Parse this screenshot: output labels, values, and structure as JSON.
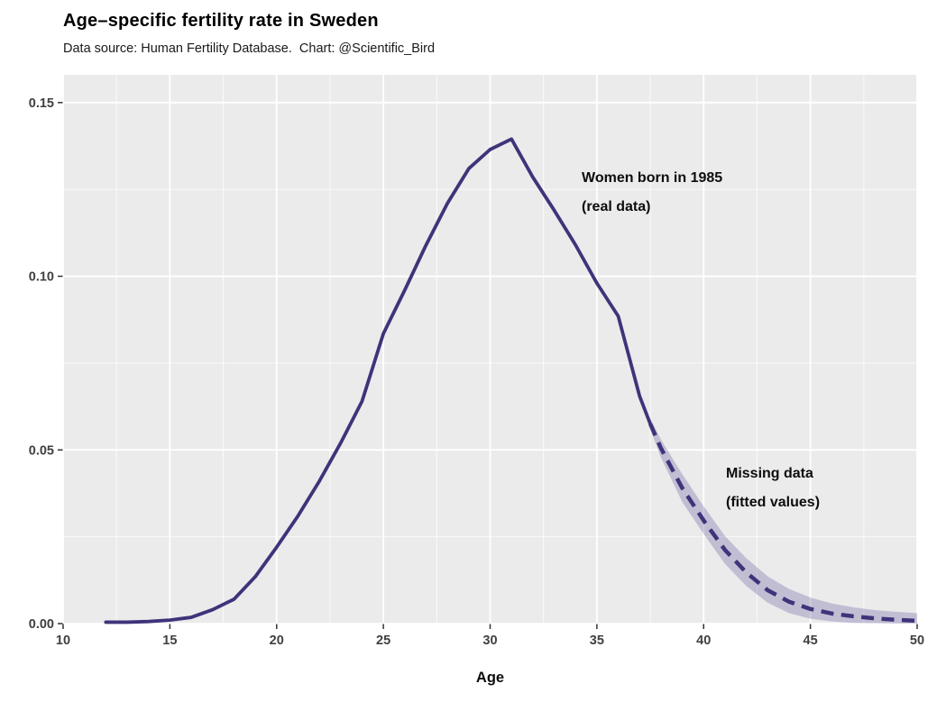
{
  "header": {
    "title": "Age–specific fertility rate in Sweden",
    "subtitle": "Data source: Human Fertility Database.  Chart: @Scientific_Bird"
  },
  "annotations": {
    "real": {
      "line1": "Women born in 1985",
      "line2": "(real data)"
    },
    "fitted": {
      "line1": "Missing data",
      "line2": "(fitted values)"
    }
  },
  "chart_data": {
    "type": "line",
    "title": "Age–specific fertility rate in Sweden",
    "subtitle": "Data source: Human Fertility Database.  Chart: @Scientific_Bird",
    "xlabel": "Age",
    "ylabel": "",
    "xlim": [
      10,
      50
    ],
    "ylim": [
      0,
      0.158
    ],
    "grid": true,
    "legend_position": "none",
    "x_major_ticks": [
      10,
      15,
      20,
      25,
      30,
      35,
      40,
      45,
      50
    ],
    "x_minor_ticks": [
      12.5,
      17.5,
      22.5,
      27.5,
      32.5,
      37.5,
      42.5,
      47.5
    ],
    "y_major_ticks": [
      0,
      0.05,
      0.1,
      0.15
    ],
    "y_minor_ticks": [
      0.025,
      0.075,
      0.125
    ],
    "y_tick_labels": [
      "0.00",
      "0.05",
      "0.10",
      "0.15"
    ],
    "colors": {
      "line": "#3d347a",
      "ribbon": "rgba(95,85,155,0.30)",
      "panel_bg": "#ebebeb",
      "grid_major": "#ffffff",
      "grid_minor": "#ffffff",
      "tick_text": "#404040",
      "tick_mark": "#333333"
    },
    "series": [
      {
        "name": "Women born in 1985 (real data)",
        "style": "solid",
        "x": [
          12,
          13,
          14,
          15,
          16,
          17,
          18,
          19,
          20,
          21,
          22,
          23,
          24,
          25,
          26,
          27,
          28,
          29,
          30,
          31,
          32,
          33,
          34,
          35,
          36,
          37,
          37.5
        ],
        "y": [
          0.0004,
          0.0004,
          0.0006,
          0.001,
          0.0018,
          0.004,
          0.007,
          0.0135,
          0.022,
          0.031,
          0.041,
          0.052,
          0.064,
          0.0835,
          0.096,
          0.109,
          0.121,
          0.131,
          0.1365,
          0.1395,
          0.1285,
          0.119,
          0.109,
          0.098,
          0.0885,
          0.0655,
          0.0575
        ]
      },
      {
        "name": "Missing data (fitted values)",
        "style": "dashed",
        "x": [
          37.5,
          38,
          39,
          40,
          41,
          42,
          43,
          44,
          45,
          46,
          47,
          48,
          49,
          50
        ],
        "y": [
          0.0575,
          0.0505,
          0.039,
          0.0297,
          0.0212,
          0.0147,
          0.0096,
          0.0063,
          0.0042,
          0.0029,
          0.0021,
          0.0015,
          0.0011,
          0.0008
        ]
      }
    ],
    "band": {
      "name": "fitted confidence band",
      "x": [
        37.5,
        38,
        39,
        40,
        41,
        42,
        43,
        44,
        45,
        46,
        47,
        48,
        49,
        50
      ],
      "upper": [
        0.059,
        0.053,
        0.043,
        0.0338,
        0.0252,
        0.0188,
        0.0136,
        0.01,
        0.0075,
        0.0058,
        0.0047,
        0.0039,
        0.0034,
        0.003
      ],
      "lower": [
        0.056,
        0.0478,
        0.035,
        0.0258,
        0.0172,
        0.0108,
        0.006,
        0.003,
        0.0014,
        0.0006,
        0.0002,
        0.0001,
        0.0,
        0.0
      ]
    }
  }
}
